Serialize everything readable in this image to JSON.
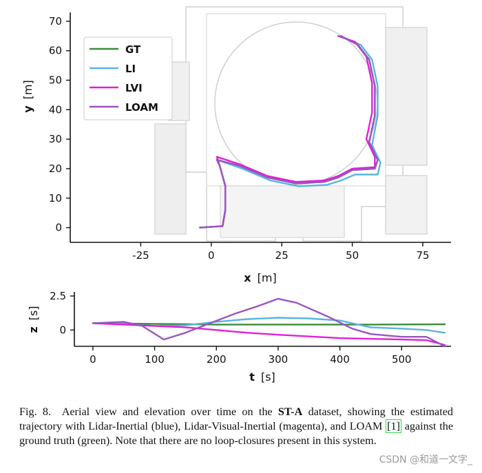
{
  "caption": {
    "prefix": "Fig. 8.",
    "text_a": "Aerial view and elevation over time on the",
    "dataset": "ST-A",
    "text_b": "dataset, showing the estimated trajectory with Lidar-Inertial (blue), Lidar-Visual-Inertial (magenta), and LOAM",
    "ref": "[1]",
    "text_c": "against the ground truth (green). Note that there are no loop-closures present in this system."
  },
  "watermark": "CSDN @和道一文字_",
  "colors": {
    "GT": "#3a8a3a",
    "LI": "#5ab4e0",
    "LVI": "#e020d8",
    "LOAM": "#9a55c0",
    "map": "#c8c8c8"
  },
  "chart_data": [
    {
      "type": "line",
      "xlabel_var": "x",
      "xlabel_unit": "[m]",
      "ylabel_var": "y",
      "ylabel_unit": "[m]",
      "xlim": [
        -50,
        85
      ],
      "ylim": [
        -5,
        73
      ],
      "xticks": [
        -25,
        0,
        25,
        50,
        75
      ],
      "yticks": [
        0,
        10,
        20,
        30,
        40,
        50,
        60,
        70
      ],
      "legend": [
        "GT",
        "LI",
        "LVI",
        "LOAM"
      ],
      "legend_position": "top-left",
      "series": [
        {
          "name": "GT",
          "points": [
            [
              -4,
              0
            ],
            [
              4,
              0.5
            ],
            [
              5,
              6
            ],
            [
              5,
              14
            ],
            [
              3,
              21
            ],
            [
              2,
              23
            ],
            [
              10,
              21
            ],
            [
              20,
              17
            ],
            [
              30,
              15
            ],
            [
              40,
              15.5
            ],
            [
              45,
              17
            ],
            [
              50,
              19.5
            ],
            [
              58,
              20
            ],
            [
              59,
              23
            ],
            [
              56,
              29
            ],
            [
              58,
              38
            ],
            [
              58,
              48
            ],
            [
              56,
              57
            ],
            [
              52,
              62
            ],
            [
              46,
              65
            ]
          ]
        },
        {
          "name": "LI",
          "points": [
            [
              -4,
              0
            ],
            [
              4,
              0.5
            ],
            [
              5,
              6
            ],
            [
              5,
              14
            ],
            [
              3,
              21
            ],
            [
              2,
              23
            ],
            [
              11,
              20
            ],
            [
              21,
              16
            ],
            [
              31,
              14
            ],
            [
              41,
              14.5
            ],
            [
              46,
              16
            ],
            [
              51,
              18
            ],
            [
              59,
              18
            ],
            [
              60,
              22
            ],
            [
              57,
              28
            ],
            [
              59,
              38
            ],
            [
              59,
              48
            ],
            [
              57,
              57
            ],
            [
              53,
              62
            ],
            [
              47,
              64.5
            ]
          ]
        },
        {
          "name": "LVI",
          "points": [
            [
              -4,
              0
            ],
            [
              4,
              0.5
            ],
            [
              5,
              6
            ],
            [
              5,
              14
            ],
            [
              3,
              21
            ],
            [
              2,
              24
            ],
            [
              10,
              21.5
            ],
            [
              20,
              17.5
            ],
            [
              30,
              15.5
            ],
            [
              40,
              16
            ],
            [
              45,
              17.5
            ],
            [
              50,
              20
            ],
            [
              58,
              20.5
            ],
            [
              58,
              24
            ],
            [
              55,
              30
            ],
            [
              57,
              39
            ],
            [
              57,
              49
            ],
            [
              55,
              58
            ],
            [
              51,
              63
            ],
            [
              45,
              65
            ]
          ]
        },
        {
          "name": "LOAM",
          "points": [
            [
              -4,
              0
            ],
            [
              4,
              0.5
            ],
            [
              5,
              6
            ],
            [
              5,
              14
            ],
            [
              3,
              21
            ],
            [
              2,
              23
            ],
            [
              10,
              21
            ],
            [
              20,
              17
            ],
            [
              30,
              15
            ],
            [
              40,
              15.5
            ],
            [
              45,
              17
            ],
            [
              50,
              19.5
            ],
            [
              58,
              20
            ],
            [
              59,
              23
            ],
            [
              56,
              29
            ],
            [
              58,
              38
            ],
            [
              58,
              48
            ],
            [
              56,
              57
            ],
            [
              52,
              62
            ],
            [
              46,
              65
            ]
          ]
        }
      ]
    },
    {
      "type": "line",
      "xlabel_var": "t",
      "xlabel_unit": "[s]",
      "ylabel_var": "z",
      "ylabel_unit": "[s]",
      "xlim": [
        -30,
        580
      ],
      "ylim": [
        -1.2,
        2.8
      ],
      "xticks": [
        0,
        100,
        200,
        300,
        400,
        500
      ],
      "yticks": [
        0,
        2.5
      ],
      "ytick_labels": [
        "0",
        "2.5"
      ],
      "series": [
        {
          "name": "GT",
          "points": [
            [
              0,
              0.5
            ],
            [
              100,
              0.45
            ],
            [
              200,
              0.4
            ],
            [
              300,
              0.4
            ],
            [
              400,
              0.4
            ],
            [
              450,
              0.4
            ],
            [
              570,
              0.42
            ]
          ]
        },
        {
          "name": "LI",
          "points": [
            [
              0,
              0.5
            ],
            [
              50,
              0.45
            ],
            [
              100,
              0.3
            ],
            [
              150,
              0.35
            ],
            [
              200,
              0.6
            ],
            [
              250,
              0.8
            ],
            [
              300,
              0.9
            ],
            [
              350,
              0.85
            ],
            [
              400,
              0.7
            ],
            [
              450,
              0.2
            ],
            [
              500,
              0.1
            ],
            [
              540,
              0.0
            ],
            [
              570,
              -0.2
            ]
          ]
        },
        {
          "name": "LVI",
          "points": [
            [
              0,
              0.5
            ],
            [
              100,
              0.3
            ],
            [
              150,
              0.2
            ],
            [
              200,
              0.0
            ],
            [
              250,
              -0.2
            ],
            [
              300,
              -0.35
            ],
            [
              400,
              -0.6
            ],
            [
              500,
              -0.7
            ],
            [
              540,
              -0.75
            ],
            [
              570,
              -1.1
            ]
          ]
        },
        {
          "name": "LOAM",
          "points": [
            [
              0,
              0.5
            ],
            [
              50,
              0.6
            ],
            [
              80,
              0.3
            ],
            [
              115,
              -0.7
            ],
            [
              150,
              -0.2
            ],
            [
              190,
              0.5
            ],
            [
              230,
              1.2
            ],
            [
              270,
              1.8
            ],
            [
              300,
              2.3
            ],
            [
              330,
              2.0
            ],
            [
              380,
              1.0
            ],
            [
              420,
              0.1
            ],
            [
              450,
              -0.3
            ],
            [
              500,
              -0.5
            ],
            [
              540,
              -0.5
            ],
            [
              570,
              -1.2
            ]
          ]
        }
      ]
    }
  ]
}
